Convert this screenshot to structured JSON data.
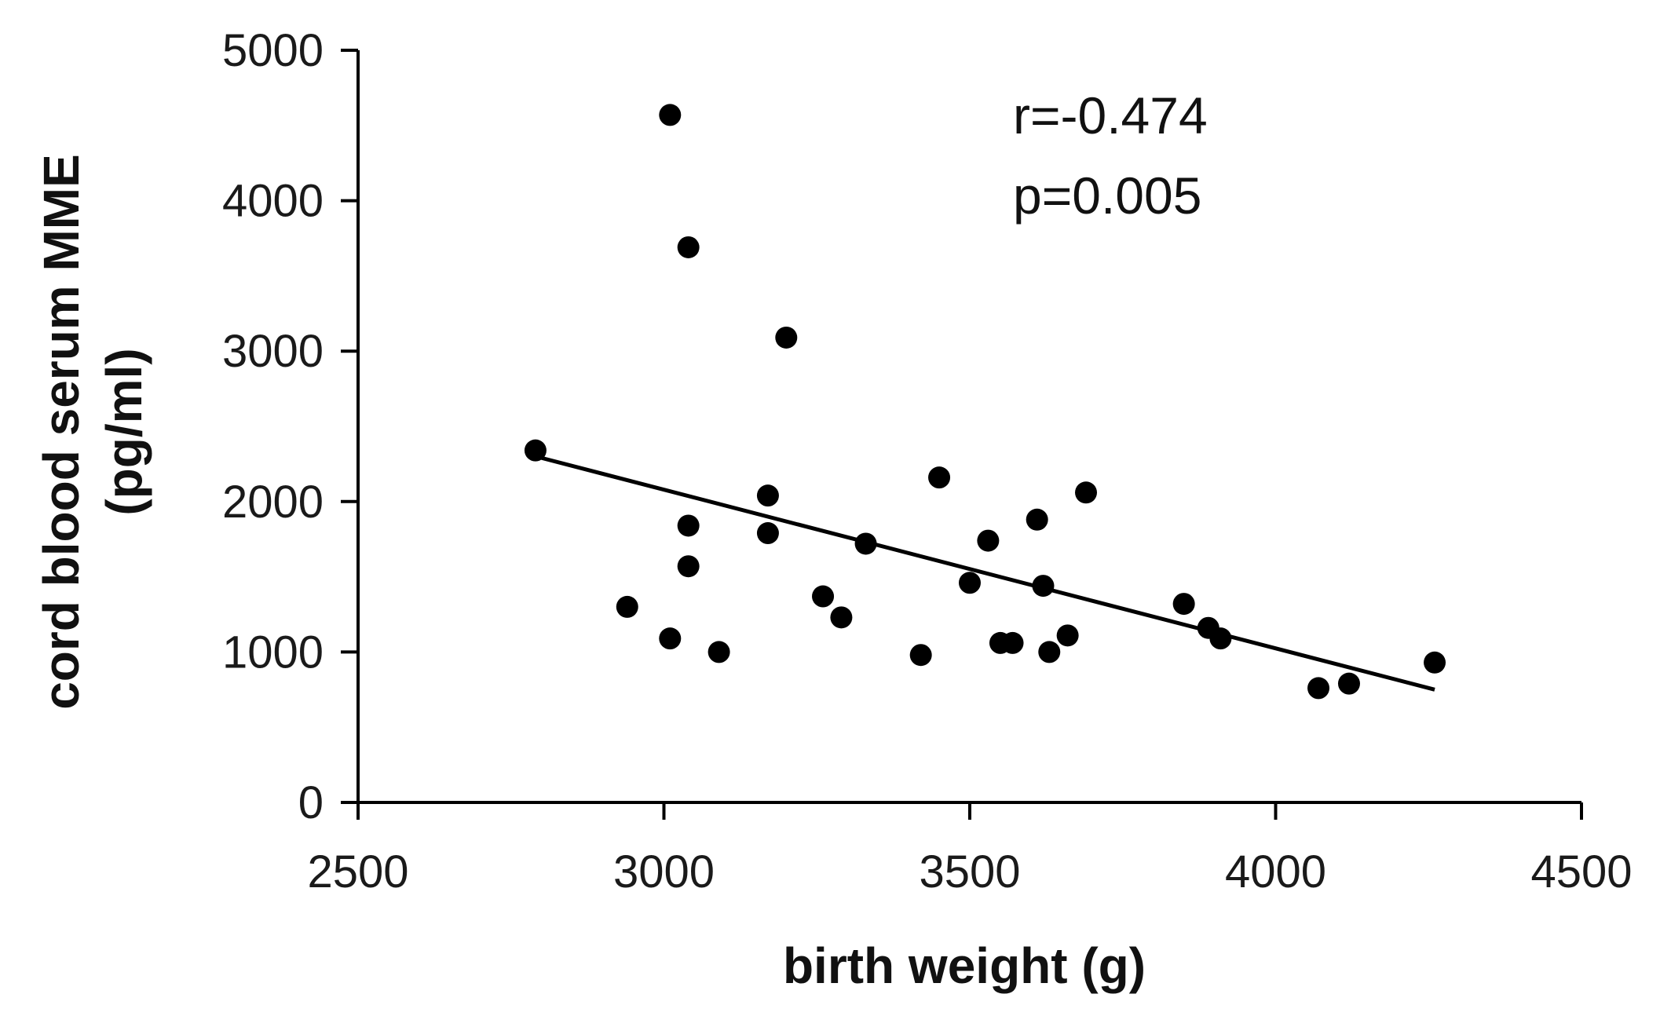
{
  "chart_data": {
    "type": "scatter",
    "title": "",
    "xlabel": "birth weight (g)",
    "ylabel_line1": "cord blood serum MME",
    "ylabel_line2": "(pg/ml)",
    "xlim": [
      2500,
      4500
    ],
    "ylim": [
      0,
      5000
    ],
    "xticks": [
      2500,
      3000,
      3500,
      4000,
      4500
    ],
    "yticks": [
      0,
      1000,
      2000,
      3000,
      4000,
      5000
    ],
    "grid": false,
    "colors": {
      "point": "#000000",
      "line": "#000000",
      "axis": "#000000"
    },
    "points": [
      {
        "x": 2790,
        "y": 2340
      },
      {
        "x": 2940,
        "y": 1300
      },
      {
        "x": 3010,
        "y": 4570
      },
      {
        "x": 3010,
        "y": 1090
      },
      {
        "x": 3040,
        "y": 3690
      },
      {
        "x": 3040,
        "y": 1840
      },
      {
        "x": 3040,
        "y": 1570
      },
      {
        "x": 3090,
        "y": 1000
      },
      {
        "x": 3170,
        "y": 2040
      },
      {
        "x": 3170,
        "y": 1790
      },
      {
        "x": 3200,
        "y": 3090
      },
      {
        "x": 3260,
        "y": 1370
      },
      {
        "x": 3290,
        "y": 1230
      },
      {
        "x": 3330,
        "y": 1720
      },
      {
        "x": 3420,
        "y": 980
      },
      {
        "x": 3450,
        "y": 2160
      },
      {
        "x": 3500,
        "y": 1460
      },
      {
        "x": 3530,
        "y": 1740
      },
      {
        "x": 3550,
        "y": 1060
      },
      {
        "x": 3570,
        "y": 1060
      },
      {
        "x": 3610,
        "y": 1880
      },
      {
        "x": 3620,
        "y": 1440
      },
      {
        "x": 3630,
        "y": 1000
      },
      {
        "x": 3660,
        "y": 1110
      },
      {
        "x": 3690,
        "y": 2060
      },
      {
        "x": 3850,
        "y": 1320
      },
      {
        "x": 3890,
        "y": 1160
      },
      {
        "x": 3910,
        "y": 1090
      },
      {
        "x": 4070,
        "y": 760
      },
      {
        "x": 4120,
        "y": 790
      },
      {
        "x": 4260,
        "y": 930
      }
    ],
    "trendline": {
      "x": [
        2800,
        4260
      ],
      "y": [
        2290,
        750
      ]
    },
    "annotations": {
      "r": "r=-0.474",
      "p": "p=0.005"
    }
  }
}
